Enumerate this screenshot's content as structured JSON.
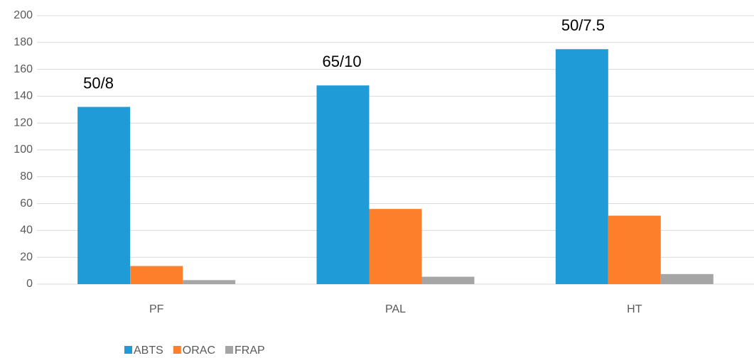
{
  "chart_data": {
    "type": "bar",
    "categories": [
      "PF",
      "PAL",
      "HT"
    ],
    "series": [
      {
        "name": "ABTS",
        "color": "#1f9bd7",
        "values": [
          132,
          148,
          175
        ]
      },
      {
        "name": "ORAC",
        "color": "#fd7f2c",
        "values": [
          13.5,
          56,
          51
        ]
      },
      {
        "name": "FRAP",
        "color": "#a5a5a5",
        "values": [
          3,
          5.5,
          7.5
        ]
      }
    ],
    "annotations": [
      "50/8",
      "65/10",
      "50/7.5"
    ],
    "ylim": [
      0,
      200
    ],
    "yticks": [
      0,
      20,
      40,
      60,
      80,
      100,
      120,
      140,
      160,
      180,
      200
    ],
    "grid": true,
    "legend": "bottom"
  }
}
